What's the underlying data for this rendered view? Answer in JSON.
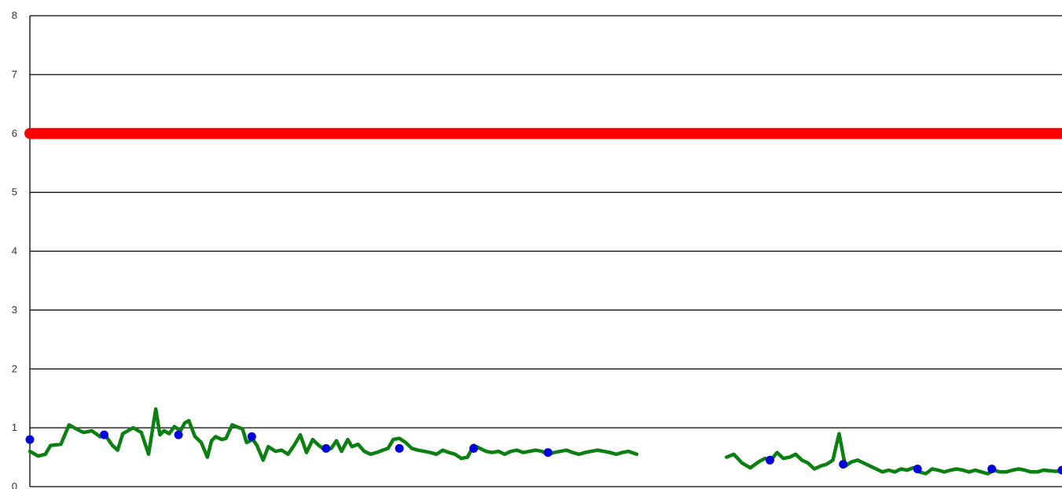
{
  "chart_data": {
    "type": "line",
    "ylim": [
      0,
      8
    ],
    "yticks": [
      "0",
      "1",
      "2",
      "3",
      "4",
      "5",
      "6",
      "7",
      "8"
    ],
    "xlim": [
      0,
      1
    ],
    "grid": true,
    "colors": {
      "threshold": "#ff0000",
      "series": "#0a8010",
      "markers": "#0000dd",
      "grid": "#000000"
    },
    "threshold": {
      "value": 6
    },
    "series": [
      {
        "segment": 1,
        "x": [
          0.0,
          0.008,
          0.015,
          0.02,
          0.03,
          0.038,
          0.045,
          0.052,
          0.06,
          0.068,
          0.072,
          0.08,
          0.085,
          0.09,
          0.095,
          0.1,
          0.108,
          0.115,
          0.122,
          0.126,
          0.13,
          0.135,
          0.14,
          0.146,
          0.15,
          0.154,
          0.16,
          0.166,
          0.172,
          0.176,
          0.18,
          0.186,
          0.19,
          0.196,
          0.2,
          0.206,
          0.21,
          0.216,
          0.22,
          0.226,
          0.231,
          0.238,
          0.244,
          0.25,
          0.256,
          0.262,
          0.268,
          0.274,
          0.28,
          0.286,
          0.292,
          0.297,
          0.302,
          0.308,
          0.312,
          0.318,
          0.324,
          0.33,
          0.336,
          0.342,
          0.347,
          0.352,
          0.358,
          0.364,
          0.37,
          0.376,
          0.382,
          0.388,
          0.394,
          0.4,
          0.406,
          0.412,
          0.418,
          0.424,
          0.43,
          0.436,
          0.442,
          0.448,
          0.454,
          0.46,
          0.466,
          0.472,
          0.478,
          0.484,
          0.49,
          0.496,
          0.502,
          0.508,
          0.514,
          0.52,
          0.526,
          0.532,
          0.538,
          0.544,
          0.55,
          0.556,
          0.562,
          0.568,
          0.574,
          0.58,
          0.588
        ],
        "values": [
          0.6,
          0.52,
          0.55,
          0.7,
          0.72,
          1.05,
          0.98,
          0.92,
          0.95,
          0.85,
          0.9,
          0.7,
          0.62,
          0.9,
          0.95,
          1.0,
          0.92,
          0.55,
          1.32,
          0.88,
          0.95,
          0.9,
          1.02,
          0.95,
          1.08,
          1.12,
          0.85,
          0.75,
          0.5,
          0.78,
          0.85,
          0.8,
          0.82,
          1.05,
          1.02,
          0.98,
          0.75,
          0.8,
          0.7,
          0.45,
          0.68,
          0.6,
          0.62,
          0.55,
          0.7,
          0.88,
          0.58,
          0.8,
          0.7,
          0.62,
          0.65,
          0.78,
          0.6,
          0.8,
          0.68,
          0.72,
          0.6,
          0.55,
          0.58,
          0.62,
          0.65,
          0.8,
          0.82,
          0.75,
          0.65,
          0.62,
          0.6,
          0.58,
          0.55,
          0.62,
          0.58,
          0.55,
          0.48,
          0.5,
          0.7,
          0.65,
          0.6,
          0.58,
          0.6,
          0.55,
          0.6,
          0.62,
          0.58,
          0.6,
          0.62,
          0.6,
          0.55,
          0.58,
          0.6,
          0.62,
          0.58,
          0.55,
          0.58,
          0.6,
          0.62,
          0.6,
          0.58,
          0.55,
          0.58,
          0.6,
          0.55
        ]
      },
      {
        "segment": 2,
        "x": [
          0.675,
          0.682,
          0.69,
          0.698,
          0.706,
          0.712,
          0.718,
          0.724,
          0.73,
          0.736,
          0.742,
          0.748,
          0.754,
          0.76,
          0.766,
          0.772,
          0.778,
          0.784,
          0.79,
          0.796,
          0.802,
          0.808,
          0.814,
          0.82,
          0.826,
          0.832,
          0.838,
          0.844,
          0.85,
          0.856,
          0.862,
          0.868,
          0.874,
          0.88,
          0.886,
          0.892,
          0.898,
          0.904,
          0.91,
          0.916,
          0.922,
          0.928,
          0.934,
          0.94,
          0.946,
          0.952,
          0.958,
          0.964,
          0.97,
          0.976,
          0.982,
          0.988,
          0.994,
          1.0
        ],
        "values": [
          0.5,
          0.55,
          0.4,
          0.32,
          0.42,
          0.48,
          0.45,
          0.58,
          0.48,
          0.5,
          0.55,
          0.45,
          0.4,
          0.3,
          0.35,
          0.38,
          0.45,
          0.9,
          0.35,
          0.42,
          0.45,
          0.4,
          0.35,
          0.3,
          0.25,
          0.28,
          0.25,
          0.3,
          0.28,
          0.32,
          0.25,
          0.22,
          0.3,
          0.28,
          0.25,
          0.28,
          0.3,
          0.28,
          0.25,
          0.28,
          0.25,
          0.22,
          0.28,
          0.25,
          0.25,
          0.28,
          0.3,
          0.28,
          0.25,
          0.25,
          0.28,
          0.27,
          0.26,
          0.27
        ]
      }
    ],
    "markers": {
      "x": [
        0.0,
        0.072,
        0.144,
        0.215,
        0.287,
        0.358,
        0.43,
        0.502,
        0.717,
        0.788,
        0.86,
        0.932,
        1.0
      ],
      "values": [
        0.8,
        0.88,
        0.88,
        0.85,
        0.65,
        0.65,
        0.65,
        0.58,
        0.45,
        0.38,
        0.3,
        0.3,
        0.28
      ]
    }
  }
}
